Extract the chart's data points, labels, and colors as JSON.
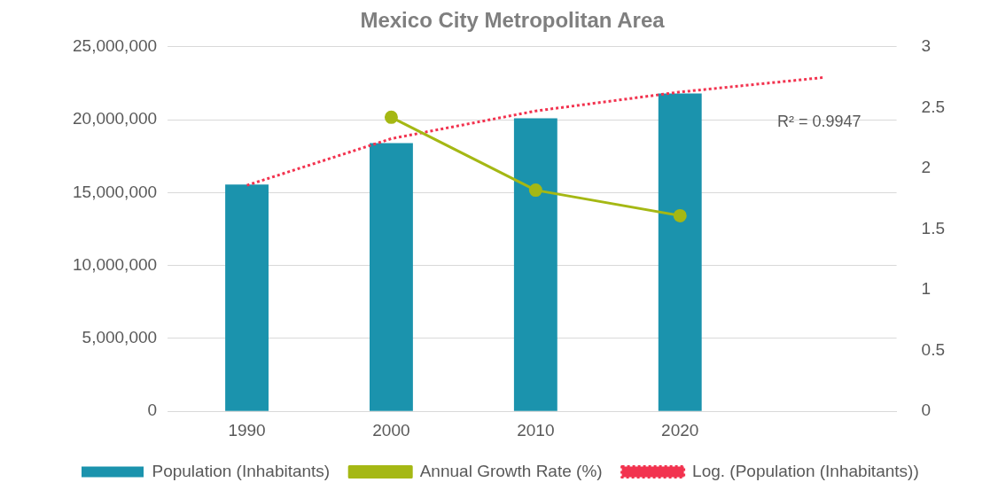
{
  "chart_data": {
    "type": "bar",
    "title": "Mexico City Metropolitan Area",
    "categories": [
      "1990",
      "2000",
      "2010",
      "2020",
      null
    ],
    "series": [
      {
        "name": "Population (Inhabitants)",
        "color": "#1b93ad",
        "values": [
          15560000,
          18400000,
          20100000,
          21800000,
          null
        ]
      },
      {
        "name": "Annual Growth Rate (%)",
        "type": "line",
        "axis": "y2",
        "color": "#a5b814",
        "marker": "circle",
        "values": [
          null,
          2.42,
          1.82,
          1.61,
          null
        ]
      },
      {
        "name": "Log. (Population (Inhabitants))",
        "type": "line",
        "color": "#f2334f",
        "marker": "none",
        "line_style": "dotted",
        "values": [
          15500000,
          18700000,
          20600000,
          21900000,
          22900000
        ]
      }
    ],
    "ylim": [
      0,
      25000000
    ],
    "yticks": [
      {
        "value": 0,
        "label": "0"
      },
      {
        "value": 5000000,
        "label": "5,000,000"
      },
      {
        "value": 10000000,
        "label": "10,000,000"
      },
      {
        "value": 15000000,
        "label": "15,000,000"
      },
      {
        "value": 20000000,
        "label": "20,000,000"
      },
      {
        "value": 25000000,
        "label": "25,000,000"
      }
    ],
    "y2lim": [
      0,
      3
    ],
    "y2ticks": [
      0,
      0.5,
      1,
      1.5,
      2,
      2.5,
      3
    ],
    "annotations": [
      "R² = 0.9947"
    ],
    "grid": "y",
    "legend": "bottom"
  }
}
